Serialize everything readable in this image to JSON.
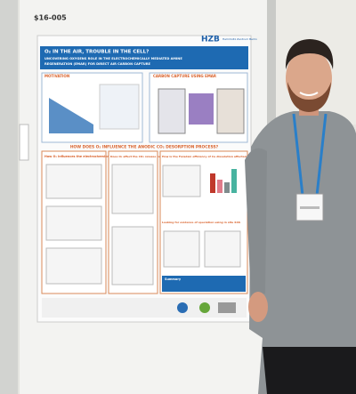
{
  "poster": {
    "board_id": "$16-005",
    "logo": {
      "short": "HZB",
      "long": "Helmholtz Zentrum Berlin"
    },
    "title": "O₂ IN THE AIR, TROUBLE IN THE CELL?",
    "subtitle": [
      "UNCOVERING OXYGENS ROLE IN THE ELECTROCHEMICALLY MEDIATED AMINE",
      "REGENERATION (EMAR) FOR DIRECT AIR CARBON CAPTURE"
    ],
    "sections": {
      "motivation": "MOTIVATION",
      "carbon_capture": "CARBON CAPTURE USING EMAR",
      "main_question": "HOW DOES O₂ INFLUENCE THE ANODIC CO₂ DESORPTION PROCESS?",
      "column_1": "How O₂ influences the electrochemical reaction?",
      "column_2": "Does O₂ affect the CO₂ release reaction (CRR)?",
      "column_3": "How is the Faradaic efficiency of Cu dissolution affected by O₂ (DQE)?",
      "column_3b": "Looking for evidence of speciation using in situ XAS",
      "summary": "Summary"
    }
  }
}
